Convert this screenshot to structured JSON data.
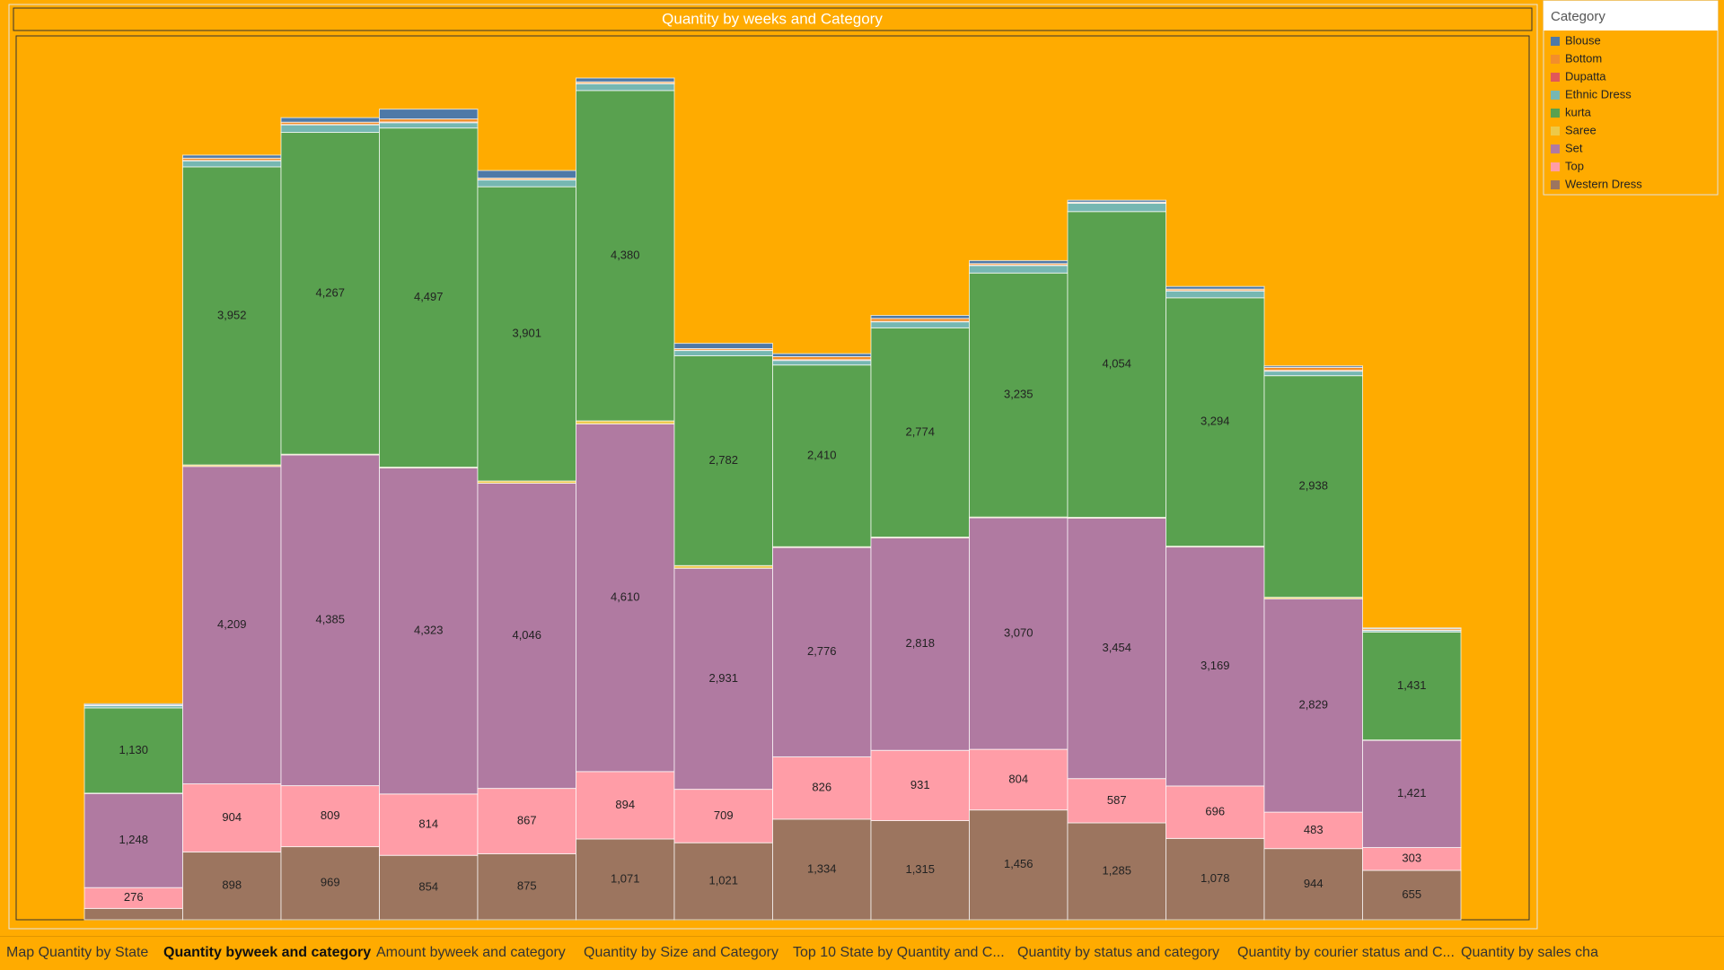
{
  "chart_data": {
    "type": "stacked_bar",
    "title": "Quantity by weeks and Category",
    "categories": [
      null,
      null,
      null,
      null,
      null,
      null,
      null,
      null,
      null,
      null,
      null,
      null,
      null,
      null
    ],
    "legend_title": "Category",
    "legend": "right",
    "series": [
      {
        "name": "Blouse",
        "color": "#4e79a7",
        "values": [
          15,
          40,
          60,
          130,
          100,
          50,
          70,
          40,
          40,
          40,
          25,
          35,
          20,
          10
        ]
      },
      {
        "name": "Bottom",
        "color": "#f28e2b",
        "values": [
          5,
          30,
          30,
          40,
          20,
          20,
          20,
          40,
          40,
          20,
          10,
          20,
          40,
          20
        ]
      },
      {
        "name": "Dupatta",
        "color": "#e15759",
        "values": [
          5,
          5,
          5,
          10,
          5,
          5,
          5,
          10,
          5,
          5,
          5,
          5,
          10,
          5
        ]
      },
      {
        "name": "Ethnic Dress",
        "color": "#76b7b2",
        "values": [
          30,
          80,
          100,
          70,
          90,
          90,
          70,
          60,
          80,
          100,
          110,
          90,
          60,
          20
        ]
      },
      {
        "name": "kurta",
        "color": "#59a14f",
        "values": [
          1130,
          3952,
          4267,
          4497,
          3901,
          4380,
          2782,
          2410,
          2774,
          3235,
          4054,
          3294,
          2938,
          1431
        ],
        "value_labels": [
          "1,130",
          "3,952",
          "4,267",
          "4,497",
          "3,901",
          "4,380",
          "2,782",
          "2,410",
          "2,774",
          "3,235",
          "4,054",
          "3,294",
          "2,938",
          "1,431"
        ]
      },
      {
        "name": "Saree",
        "color": "#edc948",
        "values": [
          5,
          20,
          10,
          10,
          30,
          40,
          35,
          10,
          10,
          10,
          10,
          10,
          20,
          5
        ]
      },
      {
        "name": "Set",
        "color": "#b07aa1",
        "values": [
          1248,
          4209,
          4385,
          4323,
          4046,
          4610,
          2931,
          2776,
          2818,
          3070,
          3454,
          3169,
          2829,
          1421
        ],
        "value_labels": [
          "1,248",
          "4,209",
          "4,385",
          "4,323",
          "4,046",
          "4,610",
          "2,931",
          "2,776",
          "2,818",
          "3,070",
          "3,454",
          "3,169",
          "2,829",
          "1,421"
        ]
      },
      {
        "name": "Top",
        "color": "#ff9da7",
        "values": [
          276,
          904,
          809,
          814,
          867,
          894,
          709,
          826,
          931,
          804,
          587,
          696,
          483,
          303
        ],
        "value_labels": [
          "276",
          "904",
          "809",
          "814",
          "867",
          "894",
          "709",
          "826",
          "931",
          "804",
          "587",
          "696",
          "483",
          "303"
        ]
      },
      {
        "name": "Western Dress",
        "color": "#9c755f",
        "values": [
          150,
          898,
          969,
          854,
          875,
          1071,
          1021,
          1334,
          1315,
          1456,
          1285,
          1078,
          944,
          655
        ],
        "value_labels": [
          null,
          "898",
          "969",
          "854",
          "875",
          "1,071",
          "1,021",
          "1,334",
          "1,315",
          "1,456",
          "1,285",
          "1,078",
          "944",
          "655"
        ]
      }
    ]
  },
  "tabs": [
    "Map Quantity by State",
    "Quantity byweek and category",
    "Amount byweek and category",
    "Quantity by Size and Category",
    "Top 10 State by Quantity and C...",
    "Quantity by status and category",
    "Quantity by courier status and C...",
    "Quantity by sales cha"
  ],
  "active_tab": 1
}
